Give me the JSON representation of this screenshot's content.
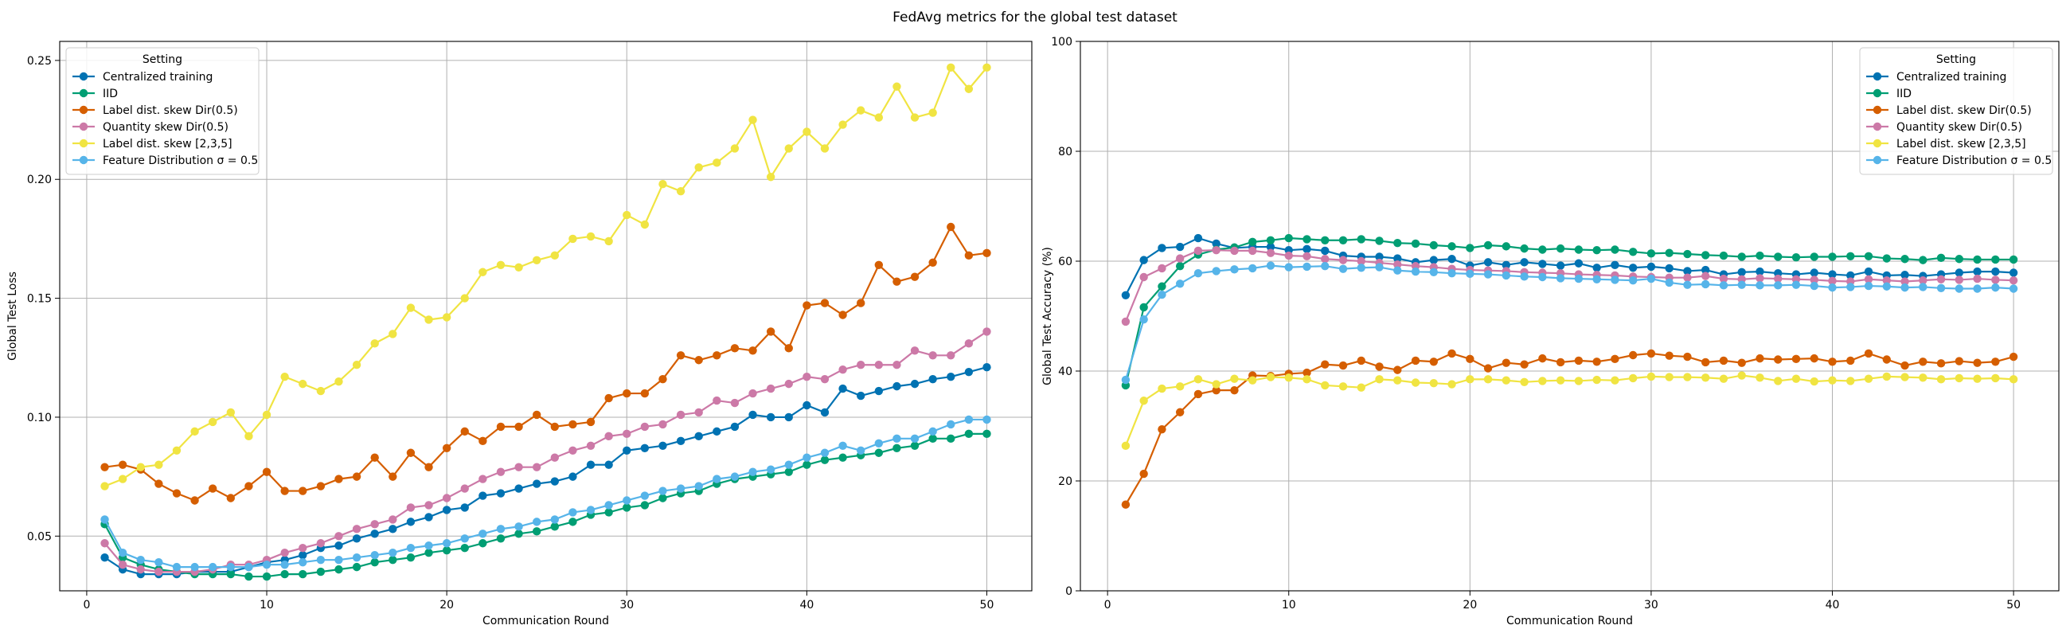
{
  "figure_title": "FedAvg metrics for the global test dataset",
  "colors": {
    "Centralized training": "#0072b2",
    "IID": "#009e73",
    "Label dist. skew Dir(0.5)": "#d55e00",
    "Quantity skew Dir(0.5)": "#cc79a7",
    "Label dist. skew [2,3,5]": "#f0e442",
    "Feature Distribution σ = 0.5": "#56b4e9"
  },
  "chart_data": [
    {
      "type": "line",
      "title": "",
      "xlabel": "Communication Round",
      "ylabel": "Global Test Loss",
      "xlim": [
        -1.5,
        52.5
      ],
      "ylim": [
        0.027,
        0.258
      ],
      "xticks": [
        0,
        10,
        20,
        30,
        40,
        50
      ],
      "xtick_labels": [
        "0",
        "10",
        "20",
        "30",
        "40",
        "50"
      ],
      "yticks": [
        0.05,
        0.1,
        0.15,
        0.2,
        0.25
      ],
      "ytick_labels": [
        "0.05",
        "0.10",
        "0.15",
        "0.20",
        "0.25"
      ],
      "grid": true,
      "legend": {
        "title": "Setting",
        "placement": "top-left"
      },
      "x": [
        1,
        2,
        3,
        4,
        5,
        6,
        7,
        8,
        9,
        10,
        11,
        12,
        13,
        14,
        15,
        16,
        17,
        18,
        19,
        20,
        21,
        22,
        23,
        24,
        25,
        26,
        27,
        28,
        29,
        30,
        31,
        32,
        33,
        34,
        35,
        36,
        37,
        38,
        39,
        40,
        41,
        42,
        43,
        44,
        45,
        46,
        47,
        48,
        49,
        50
      ],
      "series": [
        {
          "name": "Centralized training",
          "values": [
            0.041,
            0.036,
            0.034,
            0.034,
            0.034,
            0.035,
            0.035,
            0.035,
            0.037,
            0.039,
            0.04,
            0.042,
            0.045,
            0.046,
            0.049,
            0.051,
            0.053,
            0.056,
            0.058,
            0.061,
            0.062,
            0.067,
            0.068,
            0.07,
            0.072,
            0.073,
            0.075,
            0.08,
            0.08,
            0.086,
            0.087,
            0.088,
            0.09,
            0.092,
            0.094,
            0.096,
            0.101,
            0.1,
            0.1,
            0.105,
            0.102,
            0.112,
            0.109,
            0.111,
            0.113,
            0.114,
            0.116,
            0.117,
            0.119,
            0.121
          ]
        },
        {
          "name": "IID",
          "values": [
            0.055,
            0.041,
            0.038,
            0.036,
            0.035,
            0.034,
            0.034,
            0.034,
            0.033,
            0.033,
            0.034,
            0.034,
            0.035,
            0.036,
            0.037,
            0.039,
            0.04,
            0.041,
            0.043,
            0.044,
            0.045,
            0.047,
            0.049,
            0.051,
            0.052,
            0.054,
            0.056,
            0.059,
            0.06,
            0.062,
            0.063,
            0.066,
            0.068,
            0.069,
            0.072,
            0.074,
            0.075,
            0.076,
            0.077,
            0.08,
            0.082,
            0.083,
            0.084,
            0.085,
            0.087,
            0.088,
            0.091,
            0.091,
            0.093,
            0.093
          ]
        },
        {
          "name": "Label dist. skew Dir(0.5)",
          "values": [
            0.079,
            0.08,
            0.078,
            0.072,
            0.068,
            0.065,
            0.07,
            0.066,
            0.071,
            0.077,
            0.069,
            0.069,
            0.071,
            0.074,
            0.075,
            0.083,
            0.075,
            0.085,
            0.079,
            0.087,
            0.094,
            0.09,
            0.096,
            0.096,
            0.101,
            0.096,
            0.097,
            0.098,
            0.108,
            0.11,
            0.11,
            0.116,
            0.126,
            0.124,
            0.126,
            0.129,
            0.128,
            0.136,
            0.129,
            0.147,
            0.148,
            0.143,
            0.148,
            0.164,
            0.157,
            0.159,
            0.165,
            0.18,
            0.168,
            0.169
          ]
        },
        {
          "name": "Quantity skew Dir(0.5)",
          "values": [
            0.047,
            0.038,
            0.036,
            0.035,
            0.035,
            0.035,
            0.036,
            0.038,
            0.038,
            0.04,
            0.043,
            0.045,
            0.047,
            0.05,
            0.053,
            0.055,
            0.057,
            0.062,
            0.063,
            0.066,
            0.07,
            0.074,
            0.077,
            0.079,
            0.079,
            0.083,
            0.086,
            0.088,
            0.092,
            0.093,
            0.096,
            0.097,
            0.101,
            0.102,
            0.107,
            0.106,
            0.11,
            0.112,
            0.114,
            0.117,
            0.116,
            0.12,
            0.122,
            0.122,
            0.122,
            0.128,
            0.126,
            0.126,
            0.131,
            0.136
          ]
        },
        {
          "name": "Label dist. skew [2,3,5]",
          "values": [
            0.071,
            0.074,
            0.079,
            0.08,
            0.086,
            0.094,
            0.098,
            0.102,
            0.092,
            0.101,
            0.117,
            0.114,
            0.111,
            0.115,
            0.122,
            0.131,
            0.135,
            0.146,
            0.141,
            0.142,
            0.15,
            0.161,
            0.164,
            0.163,
            0.166,
            0.168,
            0.175,
            0.176,
            0.174,
            0.185,
            0.181,
            0.198,
            0.195,
            0.205,
            0.207,
            0.213,
            0.225,
            0.201,
            0.213,
            0.22,
            0.213,
            0.223,
            0.229,
            0.226,
            0.239,
            0.226,
            0.228,
            0.247,
            0.238,
            0.247
          ]
        },
        {
          "name": "Feature Distribution σ = 0.5",
          "values": [
            0.057,
            0.043,
            0.04,
            0.039,
            0.037,
            0.037,
            0.037,
            0.037,
            0.037,
            0.038,
            0.038,
            0.039,
            0.04,
            0.04,
            0.041,
            0.042,
            0.043,
            0.045,
            0.046,
            0.047,
            0.049,
            0.051,
            0.053,
            0.054,
            0.056,
            0.057,
            0.06,
            0.061,
            0.063,
            0.065,
            0.067,
            0.069,
            0.07,
            0.071,
            0.074,
            0.075,
            0.077,
            0.078,
            0.08,
            0.083,
            0.085,
            0.088,
            0.086,
            0.089,
            0.091,
            0.091,
            0.094,
            0.097,
            0.099,
            0.099
          ]
        }
      ]
    },
    {
      "type": "line",
      "title": "",
      "xlabel": "Communication Round",
      "ylabel": "Global Test Accuracy (%)",
      "xlim": [
        -1.5,
        52.5
      ],
      "ylim": [
        0,
        100
      ],
      "xticks": [
        0,
        10,
        20,
        30,
        40,
        50
      ],
      "xtick_labels": [
        "0",
        "10",
        "20",
        "30",
        "40",
        "50"
      ],
      "yticks": [
        0,
        20,
        40,
        60,
        80,
        100
      ],
      "ytick_labels": [
        "0",
        "20",
        "40",
        "60",
        "80",
        "100"
      ],
      "grid": true,
      "legend": {
        "title": "Setting",
        "placement": "top-right"
      },
      "x": [
        1,
        2,
        3,
        4,
        5,
        6,
        7,
        8,
        9,
        10,
        11,
        12,
        13,
        14,
        15,
        16,
        17,
        18,
        19,
        20,
        21,
        22,
        23,
        24,
        25,
        26,
        27,
        28,
        29,
        30,
        31,
        32,
        33,
        34,
        35,
        36,
        37,
        38,
        39,
        40,
        41,
        42,
        43,
        44,
        45,
        46,
        47,
        48,
        49,
        50
      ],
      "series": [
        {
          "name": "Centralized training",
          "values": [
            53.8,
            60.2,
            62.4,
            62.6,
            64.2,
            63.2,
            62.4,
            62.6,
            62.6,
            62.0,
            62.2,
            61.9,
            61.0,
            60.8,
            60.8,
            60.5,
            59.8,
            60.2,
            60.4,
            59.2,
            59.8,
            59.3,
            59.8,
            59.5,
            59.2,
            59.6,
            58.8,
            59.3,
            58.8,
            59.0,
            58.7,
            58.2,
            58.4,
            57.6,
            58.0,
            58.1,
            57.8,
            57.6,
            57.9,
            57.6,
            57.4,
            58.1,
            57.4,
            57.5,
            57.3,
            57.6,
            57.9,
            58.1,
            58.1,
            57.9
          ]
        },
        {
          "name": "IID",
          "values": [
            37.4,
            51.6,
            55.4,
            59.1,
            61.2,
            62.1,
            62.5,
            63.5,
            63.8,
            64.2,
            64.0,
            63.8,
            63.8,
            64.0,
            63.7,
            63.3,
            63.2,
            62.9,
            62.7,
            62.4,
            62.9,
            62.7,
            62.3,
            62.1,
            62.3,
            62.1,
            62.0,
            62.1,
            61.7,
            61.4,
            61.5,
            61.3,
            61.1,
            61.0,
            60.8,
            61.0,
            60.8,
            60.7,
            60.8,
            60.8,
            60.9,
            60.9,
            60.5,
            60.4,
            60.2,
            60.6,
            60.4,
            60.3,
            60.3,
            60.3
          ]
        },
        {
          "name": "Label dist. skew Dir(0.5)",
          "values": [
            15.7,
            21.3,
            29.4,
            32.5,
            35.8,
            36.5,
            36.5,
            39.2,
            39.1,
            39.5,
            39.7,
            41.2,
            41.0,
            41.9,
            40.8,
            40.2,
            41.9,
            41.7,
            43.2,
            42.2,
            40.5,
            41.5,
            41.2,
            42.3,
            41.6,
            41.9,
            41.7,
            42.2,
            42.9,
            43.2,
            42.8,
            42.6,
            41.6,
            41.9,
            41.5,
            42.3,
            42.1,
            42.2,
            42.3,
            41.7,
            41.9,
            43.2,
            42.1,
            41.0,
            41.7,
            41.4,
            41.8,
            41.5,
            41.7,
            42.6
          ]
        },
        {
          "name": "Quantity skew Dir(0.5)",
          "values": [
            49.0,
            57.1,
            58.7,
            60.5,
            61.9,
            62.0,
            61.9,
            61.9,
            61.5,
            61.0,
            60.9,
            60.4,
            60.2,
            60.0,
            59.7,
            59.4,
            59.1,
            58.9,
            58.6,
            58.4,
            58.3,
            58.2,
            58.0,
            57.9,
            57.8,
            57.6,
            57.5,
            57.4,
            57.2,
            57.1,
            57.0,
            57.0,
            57.3,
            56.8,
            56.7,
            56.9,
            56.8,
            56.7,
            56.6,
            56.4,
            56.3,
            56.7,
            56.5,
            56.3,
            56.5,
            56.7,
            56.6,
            56.8,
            56.6,
            56.5
          ]
        },
        {
          "name": "Label dist. skew [2,3,5]",
          "values": [
            26.4,
            34.6,
            36.8,
            37.2,
            38.5,
            37.6,
            38.6,
            38.3,
            38.9,
            38.8,
            38.5,
            37.4,
            37.2,
            37.0,
            38.5,
            38.3,
            37.9,
            37.8,
            37.6,
            38.5,
            38.5,
            38.3,
            38.0,
            38.2,
            38.3,
            38.2,
            38.4,
            38.3,
            38.7,
            39.0,
            38.9,
            38.9,
            38.8,
            38.6,
            39.2,
            38.8,
            38.2,
            38.6,
            38.1,
            38.3,
            38.2,
            38.6,
            39.0,
            38.9,
            38.8,
            38.5,
            38.7,
            38.6,
            38.7,
            38.5
          ]
        },
        {
          "name": "Feature Distribution σ = 0.5",
          "values": [
            38.4,
            49.4,
            53.9,
            55.9,
            57.8,
            58.2,
            58.5,
            58.7,
            59.2,
            58.9,
            59.0,
            59.1,
            58.6,
            58.8,
            58.9,
            58.3,
            58.1,
            58.0,
            57.8,
            57.7,
            57.6,
            57.4,
            57.2,
            57.1,
            56.9,
            56.8,
            56.7,
            56.6,
            56.5,
            56.8,
            56.1,
            55.7,
            55.8,
            55.6,
            55.7,
            55.6,
            55.6,
            55.7,
            55.5,
            55.2,
            55.3,
            55.5,
            55.4,
            55.2,
            55.3,
            55.1,
            55.0,
            55.0,
            55.2,
            55.0
          ]
        }
      ]
    }
  ]
}
